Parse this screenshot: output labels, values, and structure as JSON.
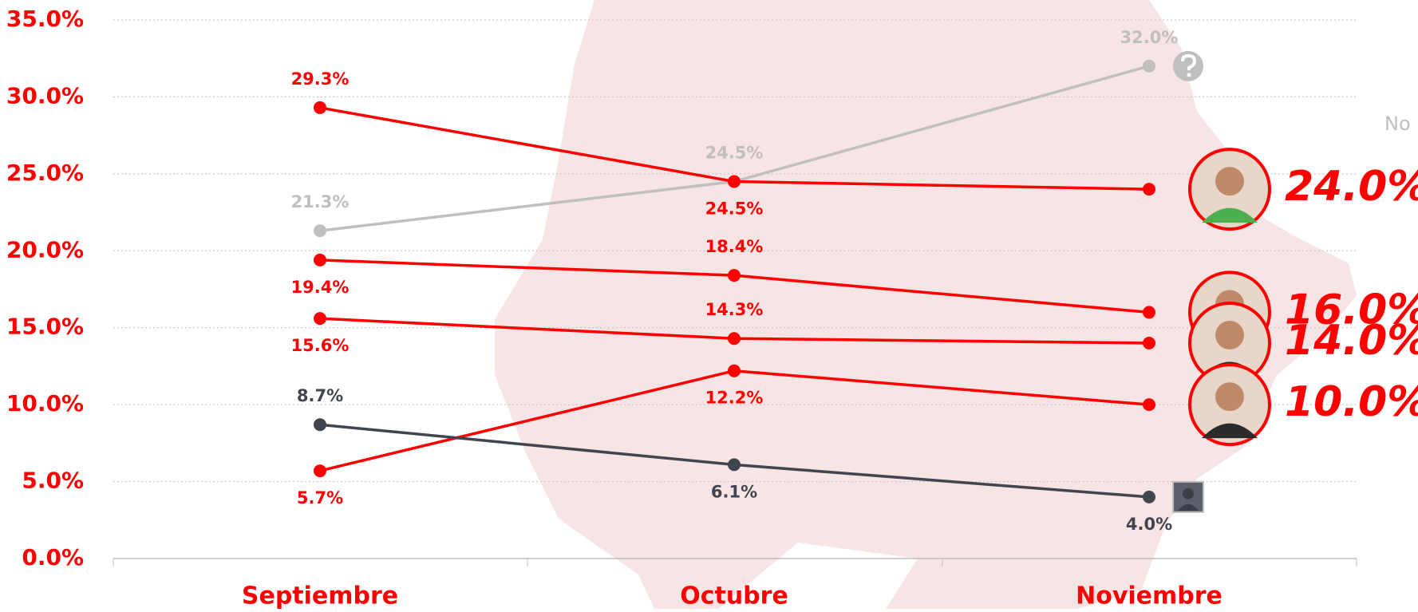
{
  "chart_data": {
    "type": "line",
    "categories": [
      "Septiembre",
      "Octubre",
      "Noviembre"
    ],
    "ylim": [
      0,
      35
    ],
    "yticks": [
      {
        "value": 0,
        "label": "0.0%"
      },
      {
        "value": 5,
        "label": "5.0%"
      },
      {
        "value": 10,
        "label": "10.0%"
      },
      {
        "value": 15,
        "label": "15.0%"
      },
      {
        "value": 20,
        "label": "20.0%"
      },
      {
        "value": 25,
        "label": "25.0%"
      },
      {
        "value": 30,
        "label": "30.0%"
      },
      {
        "value": 35,
        "label": "35.0%"
      }
    ],
    "grid": true,
    "annotation": "No",
    "series": [
      {
        "color": "#bfbfbf",
        "values": [
          21.3,
          24.5,
          32.0
        ],
        "value_labels": [
          "21.3%",
          "24.5%",
          "32.0%"
        ]
      },
      {
        "color": "#ff0000",
        "values": [
          29.3,
          24.5,
          24.0
        ],
        "value_labels": [
          "29.3%",
          "24.5%",
          "24.0%"
        ]
      },
      {
        "color": "#ff0000",
        "values": [
          19.4,
          18.4,
          16.0
        ],
        "value_labels": [
          "19.4%",
          "18.4%",
          "16.0%"
        ]
      },
      {
        "color": "#ff0000",
        "values": [
          15.6,
          14.3,
          14.0
        ],
        "value_labels": [
          "15.6%",
          "14.3%",
          "14.0%"
        ]
      },
      {
        "color": "#ff0000",
        "values": [
          5.7,
          12.2,
          10.0
        ],
        "value_labels": [
          "5.7%",
          "12.2%",
          "10.0%"
        ]
      },
      {
        "color": "#404550",
        "values": [
          8.7,
          6.1,
          4.0
        ],
        "value_labels": [
          "8.7%",
          "6.1%",
          "4.0%"
        ]
      }
    ]
  }
}
